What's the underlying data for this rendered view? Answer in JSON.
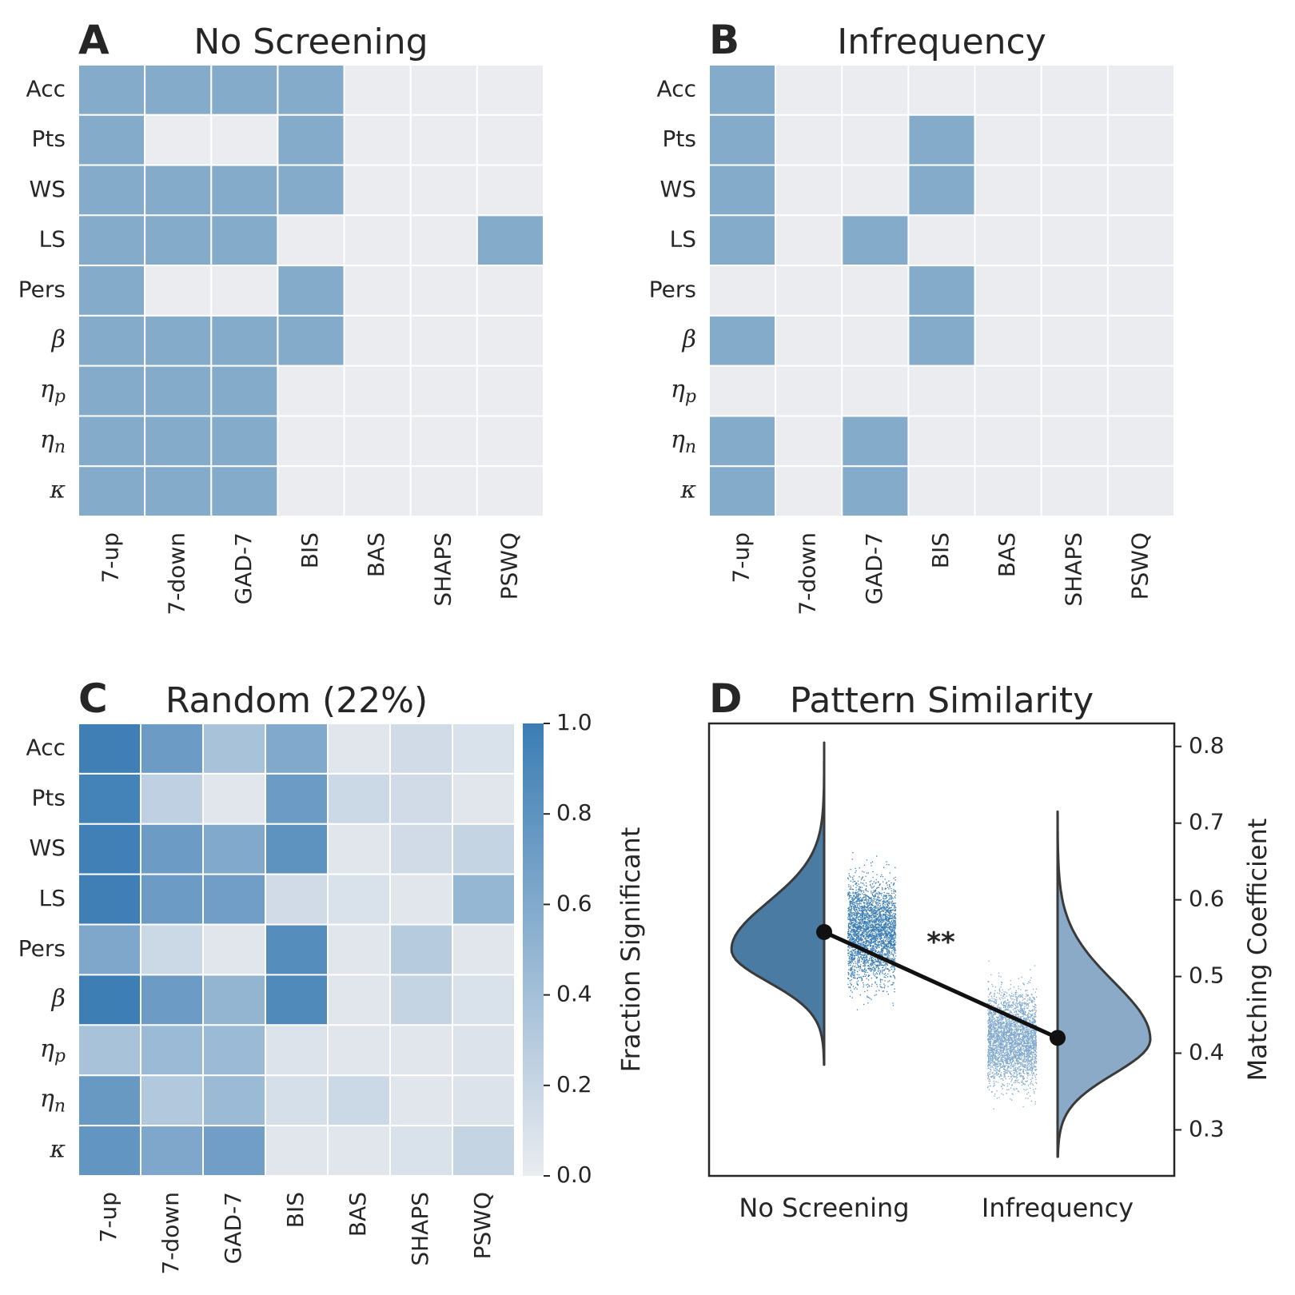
{
  "chart_data": [
    {
      "panel": "A",
      "title": "No Screening",
      "type": "heatmap",
      "rows": [
        "Acc",
        "Pts",
        "WS",
        "LS",
        "Pers",
        "β",
        "η_p",
        "η_n",
        "κ"
      ],
      "cols": [
        "7-up",
        "7-down",
        "GAD-7",
        "BIS",
        "BAS",
        "SHAPS",
        "PSWQ"
      ],
      "values": [
        [
          1,
          1,
          1,
          1,
          0,
          0,
          0
        ],
        [
          1,
          0,
          0,
          1,
          0,
          0,
          0
        ],
        [
          1,
          1,
          1,
          1,
          0,
          0,
          0
        ],
        [
          1,
          1,
          1,
          0,
          0,
          0,
          1
        ],
        [
          1,
          0,
          0,
          1,
          0,
          0,
          0
        ],
        [
          1,
          1,
          1,
          1,
          0,
          0,
          0
        ],
        [
          1,
          1,
          1,
          0,
          0,
          0,
          0
        ],
        [
          1,
          1,
          1,
          0,
          0,
          0,
          0
        ],
        [
          1,
          1,
          1,
          0,
          0,
          0,
          0
        ]
      ]
    },
    {
      "panel": "B",
      "title": "Infrequency",
      "type": "heatmap",
      "rows": [
        "Acc",
        "Pts",
        "WS",
        "LS",
        "Pers",
        "β",
        "η_p",
        "η_n",
        "κ"
      ],
      "cols": [
        "7-up",
        "7-down",
        "GAD-7",
        "BIS",
        "BAS",
        "SHAPS",
        "PSWQ"
      ],
      "values": [
        [
          1,
          0,
          0,
          0,
          0,
          0,
          0
        ],
        [
          1,
          0,
          0,
          1,
          0,
          0,
          0
        ],
        [
          1,
          0,
          0,
          1,
          0,
          0,
          0
        ],
        [
          1,
          0,
          1,
          0,
          0,
          0,
          0
        ],
        [
          0,
          0,
          0,
          1,
          0,
          0,
          0
        ],
        [
          1,
          0,
          0,
          1,
          0,
          0,
          0
        ],
        [
          0,
          0,
          0,
          0,
          0,
          0,
          0
        ],
        [
          1,
          0,
          1,
          0,
          0,
          0,
          0
        ],
        [
          1,
          0,
          1,
          0,
          0,
          0,
          0
        ]
      ]
    },
    {
      "panel": "C",
      "title": "Random (22%)",
      "type": "heatmap",
      "rows": [
        "Acc",
        "Pts",
        "WS",
        "LS",
        "Pers",
        "β",
        "η_p",
        "η_n",
        "κ"
      ],
      "cols": [
        "7-up",
        "7-down",
        "GAD-7",
        "BIS",
        "BAS",
        "SHAPS",
        "PSWQ"
      ],
      "values": [
        [
          0.98,
          0.72,
          0.38,
          0.6,
          0.05,
          0.15,
          0.1
        ],
        [
          0.95,
          0.25,
          0.05,
          0.72,
          0.18,
          0.15,
          0.05
        ],
        [
          0.97,
          0.72,
          0.6,
          0.8,
          0.05,
          0.15,
          0.22
        ],
        [
          0.98,
          0.72,
          0.7,
          0.15,
          0.1,
          0.05,
          0.48
        ],
        [
          0.62,
          0.18,
          0.05,
          0.85,
          0.05,
          0.3,
          0.05
        ],
        [
          0.99,
          0.72,
          0.5,
          0.88,
          0.05,
          0.22,
          0.1
        ],
        [
          0.38,
          0.45,
          0.45,
          0.08,
          0.05,
          0.05,
          0.08
        ],
        [
          0.75,
          0.32,
          0.45,
          0.12,
          0.18,
          0.05,
          0.08
        ],
        [
          0.78,
          0.62,
          0.7,
          0.05,
          0.05,
          0.1,
          0.22
        ]
      ],
      "colorbar": {
        "label": "Fraction Significant",
        "range": [
          0.0,
          1.0
        ],
        "ticks": [
          "0.0",
          "0.2",
          "0.4",
          "0.6",
          "0.8",
          "1.0"
        ]
      }
    },
    {
      "panel": "D",
      "title": "Pattern Similarity",
      "type": "violin",
      "categories": [
        "No Screening",
        "Infrequency"
      ],
      "means": [
        0.558,
        0.42
      ],
      "ylabel": "Matching Coefficient",
      "ylim": [
        0.24,
        0.83
      ],
      "yticks": [
        "0.3",
        "0.4",
        "0.5",
        "0.6",
        "0.7",
        "0.8"
      ],
      "ranges": [
        [
          0.385,
          0.805
        ],
        [
          0.265,
          0.715
        ]
      ],
      "annotation": "**"
    }
  ],
  "colors": {
    "on": "#85abcb",
    "off": "#eaecf0",
    "accent": "#3b7db4",
    "violin_left": "#4a7ba3",
    "violin_right": "#8aaac8"
  }
}
